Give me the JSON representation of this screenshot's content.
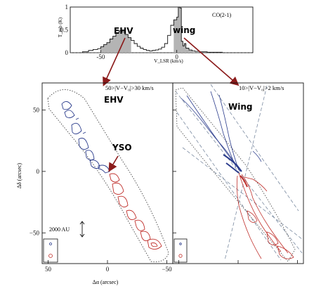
{
  "colors": {
    "blue_lobe": "#2b3c8c",
    "red_lobe": "#c0302c",
    "arrow": "#8b1a1a",
    "shade": "#b4b4b4",
    "outline": "#444444"
  },
  "chart_data": [
    {
      "type": "line",
      "label": "CO(2-1)",
      "xlabel": "V_LSR (km/s)",
      "ylabel": "T_mb (K)",
      "xlim": [
        -70,
        50
      ],
      "ylim": [
        0,
        1
      ],
      "x_ticks": [
        "-50",
        "0"
      ],
      "y_ticks": [
        "0",
        "0.5",
        "1"
      ],
      "annotations": [
        "EHV",
        "wing"
      ],
      "shaded_ranges": [
        [
          -30,
          -50
        ],
        [
          -2,
          10
        ]
      ],
      "grid": false,
      "series": [
        {
          "x": [
            -70,
            -62,
            -58,
            -55,
            -52,
            -50,
            -48,
            -46,
            -44,
            -42,
            -40,
            -38,
            -36,
            -34,
            -32,
            -30,
            -28,
            -26,
            -24,
            -22,
            -20,
            -18,
            -16,
            -14,
            -12,
            -10,
            -8,
            -6,
            -4,
            -2,
            0,
            1,
            2,
            3,
            4,
            5,
            6,
            8,
            10,
            12,
            15,
            20,
            30,
            40,
            50
          ],
          "y": [
            0.0,
            0.02,
            0.05,
            0.07,
            0.09,
            0.13,
            0.18,
            0.22,
            0.3,
            0.36,
            0.44,
            0.48,
            0.46,
            0.4,
            0.33,
            0.27,
            0.2,
            0.14,
            0.1,
            0.07,
            0.05,
            0.04,
            0.05,
            0.06,
            0.08,
            0.12,
            0.2,
            0.38,
            0.6,
            0.72,
            0.78,
            1.0,
            0.98,
            0.25,
            0.15,
            0.2,
            0.1,
            0.06,
            0.04,
            0.03,
            0.02,
            0.01,
            0.0,
            0.0,
            0.0
          ]
        }
      ]
    },
    {
      "type": "contour",
      "label": "EHV",
      "range_label": "50>|V−V₀|>30 km/s",
      "xlabel": "Δα (arcsec)",
      "ylabel": "Δδ (arcsec)",
      "xlim": [
        55,
        -55
      ],
      "ylim": [
        -75,
        72
      ],
      "x_ticks": [
        "50",
        "0",
        "−50"
      ],
      "y_ticks": [
        "50",
        "0",
        "−50"
      ],
      "annotations": [
        "YSO",
        "2000 AU"
      ],
      "series": [
        {
          "name": "blue",
          "points": [
            [
              35,
              45
            ],
            [
              30,
              35
            ],
            [
              28,
              25
            ],
            [
              20,
              10
            ],
            [
              10,
              5
            ],
            [
              5,
              -2
            ],
            [
              10,
              -8
            ],
            [
              18,
              -15
            ],
            [
              22,
              -23
            ],
            [
              25,
              -28
            ],
            [
              23,
              -30
            ]
          ]
        },
        {
          "name": "red",
          "points": [
            [
              0,
              0
            ],
            [
              -5,
              -5
            ],
            [
              -10,
              -12
            ],
            [
              -15,
              -20
            ],
            [
              -18,
              -30
            ],
            [
              -20,
              -40
            ],
            [
              -24,
              -50
            ],
            [
              -28,
              -60
            ],
            [
              -30,
              -63
            ]
          ]
        }
      ]
    },
    {
      "type": "contour",
      "label": "Wing",
      "range_label": "10>|V−V₀|>2 km/s",
      "xlabel": "",
      "ylabel": "",
      "xlim": [
        55,
        -55
      ],
      "ylim": [
        -75,
        72
      ],
      "series": [
        {
          "name": "blue",
          "points": [
            [
              40,
              60
            ],
            [
              30,
              45
            ],
            [
              20,
              30
            ],
            [
              10,
              15
            ],
            [
              5,
              5
            ],
            [
              0,
              0
            ]
          ]
        },
        {
          "name": "red",
          "points": [
            [
              0,
              0
            ],
            [
              -5,
              -10
            ],
            [
              -10,
              -20
            ],
            [
              -15,
              -35
            ],
            [
              -20,
              -50
            ],
            [
              -25,
              -62
            ]
          ]
        }
      ]
    }
  ]
}
